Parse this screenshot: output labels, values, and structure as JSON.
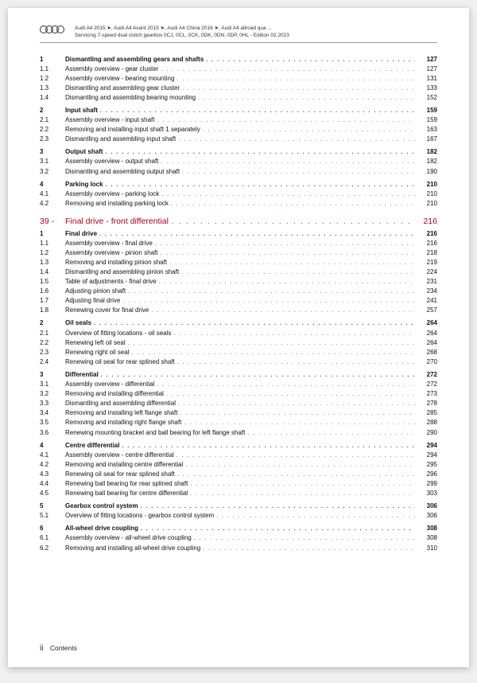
{
  "header": {
    "line1": "Audi A4 2015 ➤, Audi A4 Avant 2015 ➤, Audi A4 China 2016 ➤, Audi A4 allroad qua ...",
    "line2": "Servicing 7-speed dual clutch gearbox 0CJ, 0CL, 0CK, 0DK, 0DN, 0DP, 0HL - Edition 02.2023"
  },
  "chapter": {
    "num": "39 -",
    "title": "Final drive - front differential",
    "page": "216"
  },
  "groups": [
    {
      "rows": [
        {
          "n": "1",
          "t": "Dismantling and assembling gears and shafts",
          "p": "127",
          "b": true
        },
        {
          "n": "1.1",
          "t": "Assembly overview - gear cluster",
          "p": "127"
        },
        {
          "n": "1.2",
          "t": "Assembly overview - bearing mounting",
          "p": "131"
        },
        {
          "n": "1.3",
          "t": "Dismantling and assembling gear cluster",
          "p": "133"
        },
        {
          "n": "1.4",
          "t": "Dismantling and assembling bearing mounting",
          "p": "152"
        },
        {
          "n": "2",
          "t": "Input shaft",
          "p": "159",
          "b": true
        },
        {
          "n": "2.1",
          "t": "Assembly overview - input shaft",
          "p": "159"
        },
        {
          "n": "2.2",
          "t": "Removing and installing input shaft 1 separately",
          "p": "163"
        },
        {
          "n": "2.3",
          "t": "Dismantling and assembling input shaft",
          "p": "167"
        },
        {
          "n": "3",
          "t": "Output shaft",
          "p": "182",
          "b": true
        },
        {
          "n": "3.1",
          "t": "Assembly overview - output shaft",
          "p": "182"
        },
        {
          "n": "3.2",
          "t": "Dismantling and assembling output shaft",
          "p": "190"
        },
        {
          "n": "4",
          "t": "Parking lock",
          "p": "210",
          "b": true
        },
        {
          "n": "4.1",
          "t": "Assembly overview - parking lock",
          "p": "210"
        },
        {
          "n": "4.2",
          "t": "Removing and installing parking lock",
          "p": "210"
        }
      ]
    },
    {
      "chapter": true,
      "rows": [
        {
          "n": "1",
          "t": "Final drive",
          "p": "216",
          "b": true
        },
        {
          "n": "1.1",
          "t": "Assembly overview - final drive",
          "p": "216"
        },
        {
          "n": "1.2",
          "t": "Assembly overview - pinion shaft",
          "p": "218"
        },
        {
          "n": "1.3",
          "t": "Removing and installing pinion shaft",
          "p": "219"
        },
        {
          "n": "1.4",
          "t": "Dismantling and assembling pinion shaft",
          "p": "224"
        },
        {
          "n": "1.5",
          "t": "Table of adjustments - final drive",
          "p": "231"
        },
        {
          "n": "1.6",
          "t": "Adjusting pinion shaft",
          "p": "234"
        },
        {
          "n": "1.7",
          "t": "Adjusting final drive",
          "p": "241"
        },
        {
          "n": "1.8",
          "t": "Renewing cover for final drive",
          "p": "257"
        },
        {
          "n": "2",
          "t": "Oil seals",
          "p": "264",
          "b": true
        },
        {
          "n": "2.1",
          "t": "Overview of fitting locations - oil seals",
          "p": "264"
        },
        {
          "n": "2.2",
          "t": "Renewing left oil seal",
          "p": "264"
        },
        {
          "n": "2.3",
          "t": "Renewing right oil seal",
          "p": "268"
        },
        {
          "n": "2.4",
          "t": "Renewing oil seal for rear splined shaft",
          "p": "270"
        },
        {
          "n": "3",
          "t": "Differential",
          "p": "272",
          "b": true
        },
        {
          "n": "3.1",
          "t": "Assembly overview - differential",
          "p": "272"
        },
        {
          "n": "3.2",
          "t": "Removing and installing differential",
          "p": "273"
        },
        {
          "n": "3.3",
          "t": "Dismantling and assembling differential",
          "p": "278"
        },
        {
          "n": "3.4",
          "t": "Removing and installing left flange shaft",
          "p": "285"
        },
        {
          "n": "3.5",
          "t": "Removing and installing right flange shaft",
          "p": "288"
        },
        {
          "n": "3.6",
          "t": "Renewing mounting bracket and ball bearing for left flange shaft",
          "p": "290"
        },
        {
          "n": "4",
          "t": "Centre differential",
          "p": "294",
          "b": true
        },
        {
          "n": "4.1",
          "t": "Assembly overview - centre differential",
          "p": "294"
        },
        {
          "n": "4.2",
          "t": "Removing and installing centre differential",
          "p": "295"
        },
        {
          "n": "4.3",
          "t": "Renewing oil seal for rear splined shaft",
          "p": "296"
        },
        {
          "n": "4.4",
          "t": "Renewing ball bearing for rear splined shaft",
          "p": "299"
        },
        {
          "n": "4.5",
          "t": "Renewing ball bearing for centre differential",
          "p": "303"
        },
        {
          "n": "5",
          "t": "Gearbox control system",
          "p": "306",
          "b": true
        },
        {
          "n": "5.1",
          "t": "Overview of fitting locations - gearbox control system",
          "p": "306"
        },
        {
          "n": "6",
          "t": "All-wheel drive coupling",
          "p": "308",
          "b": true
        },
        {
          "n": "6.1",
          "t": "Assembly overview - all-wheel drive coupling",
          "p": "308"
        },
        {
          "n": "6.2",
          "t": "Removing and installing all-wheel drive coupling",
          "p": "310"
        }
      ]
    }
  ],
  "footer": {
    "page": "ii",
    "label": "Contents"
  },
  "dots": ". . . . . . . . . . . . . . . . . . . . . . . . . . . . . . . . . . . . . . . . . . . . . . . . . . . . . . . . . . . . . . . . . . . . . . . . . . . . . . . . . . . . . . . . ."
}
